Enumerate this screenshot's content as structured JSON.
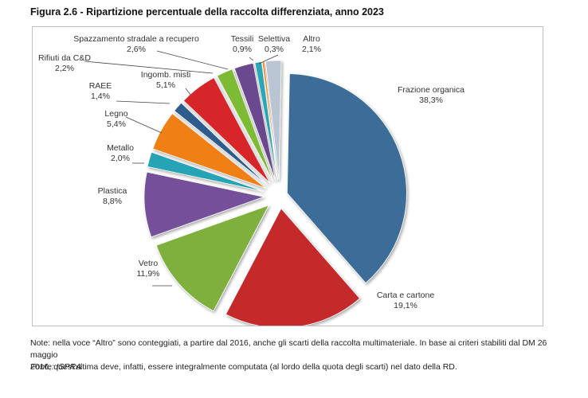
{
  "figure": {
    "title": "Figura 2.6 - Ripartizione percentuale della raccolta differenziata, anno 2023",
    "note_line1": "Note: nella voce “Altro” sono conteggiati, a partire dal 2016, anche gli scarti della raccolta multimateriale. In base ai criteri stabiliti dal DM 26 maggio",
    "note_line2": "2016, quest’ultima deve, infatti, essere integralmente computata (al lordo della quota degli scarti) nel dato della RD.",
    "source": "Fonte: ISPRA"
  },
  "chart_data": {
    "type": "pie",
    "title": "Figura 2.6 - Ripartizione percentuale della raccolta differenziata, anno 2023",
    "unit": "%",
    "exploded": true,
    "slices": [
      {
        "label": "Frazione organica",
        "value": 38.3,
        "value_label": "38,3%",
        "color": "#3a6d98"
      },
      {
        "label": "Carta e cartone",
        "value": 19.1,
        "value_label": "19,1%",
        "color": "#c42a2c"
      },
      {
        "label": "Vetro",
        "value": 11.9,
        "value_label": "11,9%",
        "color": "#7fb03d"
      },
      {
        "label": "Plastica",
        "value": 8.8,
        "value_label": "8,8%",
        "color": "#74509a"
      },
      {
        "label": "Metallo",
        "value": 2.0,
        "value_label": "2,0%",
        "color": "#27a3b5"
      },
      {
        "label": "Legno",
        "value": 5.4,
        "value_label": "5,4%",
        "color": "#f07f14"
      },
      {
        "label": "RAEE",
        "value": 1.4,
        "value_label": "1,4%",
        "color": "#2f5c8c"
      },
      {
        "label": "Ingomb. misti",
        "value": 5.1,
        "value_label": "5,1%",
        "color": "#d7272a"
      },
      {
        "label": "Rifiuti da C&D",
        "value": 2.2,
        "value_label": "2,2%",
        "color": "#7dbb34"
      },
      {
        "label": "Spazzamento stradale a recupero",
        "value": 2.6,
        "value_label": "2,6%",
        "color": "#6a4a8e"
      },
      {
        "label": "Tessili",
        "value": 0.9,
        "value_label": "0,9%",
        "color": "#2aa7b8"
      },
      {
        "label": "Selettiva",
        "value": 0.3,
        "value_label": "0,3%",
        "color": "#f28c28"
      },
      {
        "label": "Altro",
        "value": 2.1,
        "value_label": "2,1%",
        "color": "#b9c5d3"
      }
    ]
  }
}
